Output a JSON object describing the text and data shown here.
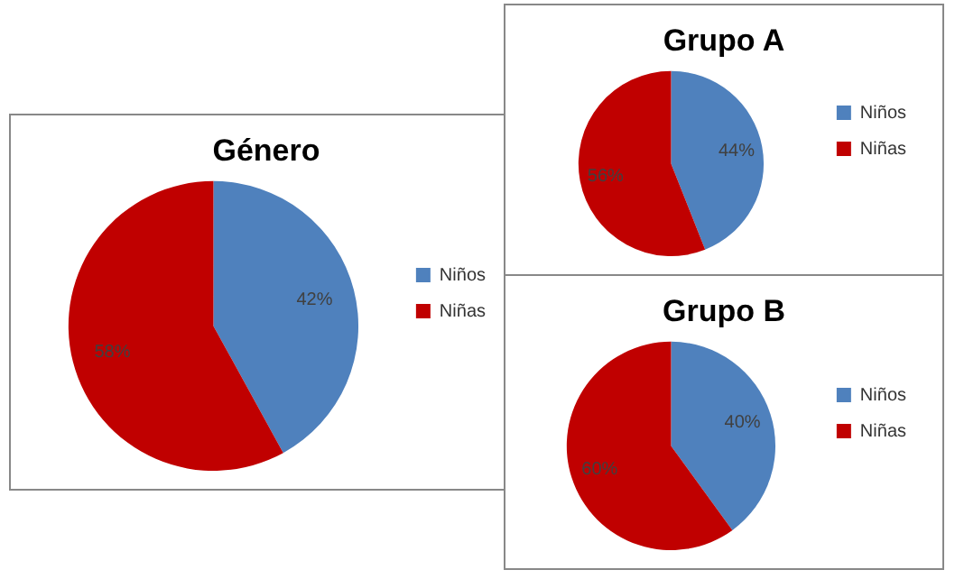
{
  "chart_data": [
    {
      "type": "pie",
      "title": "Género",
      "categories": [
        "Niños",
        "Niñas"
      ],
      "values": [
        42,
        58
      ],
      "value_labels": [
        "42%",
        "58%"
      ],
      "colors": [
        "#4f81bd",
        "#c00000"
      ],
      "legend": "right"
    },
    {
      "type": "pie",
      "title": "Grupo A",
      "categories": [
        "Niños",
        "Niñas"
      ],
      "values": [
        44,
        56
      ],
      "value_labels": [
        "44%",
        "56%"
      ],
      "colors": [
        "#4f81bd",
        "#c00000"
      ],
      "legend": "right"
    },
    {
      "type": "pie",
      "title": "Grupo B",
      "categories": [
        "Niños",
        "Niñas"
      ],
      "values": [
        40,
        60
      ],
      "value_labels": [
        "40%",
        "60%"
      ],
      "colors": [
        "#4f81bd",
        "#c00000"
      ],
      "legend": "right"
    }
  ]
}
